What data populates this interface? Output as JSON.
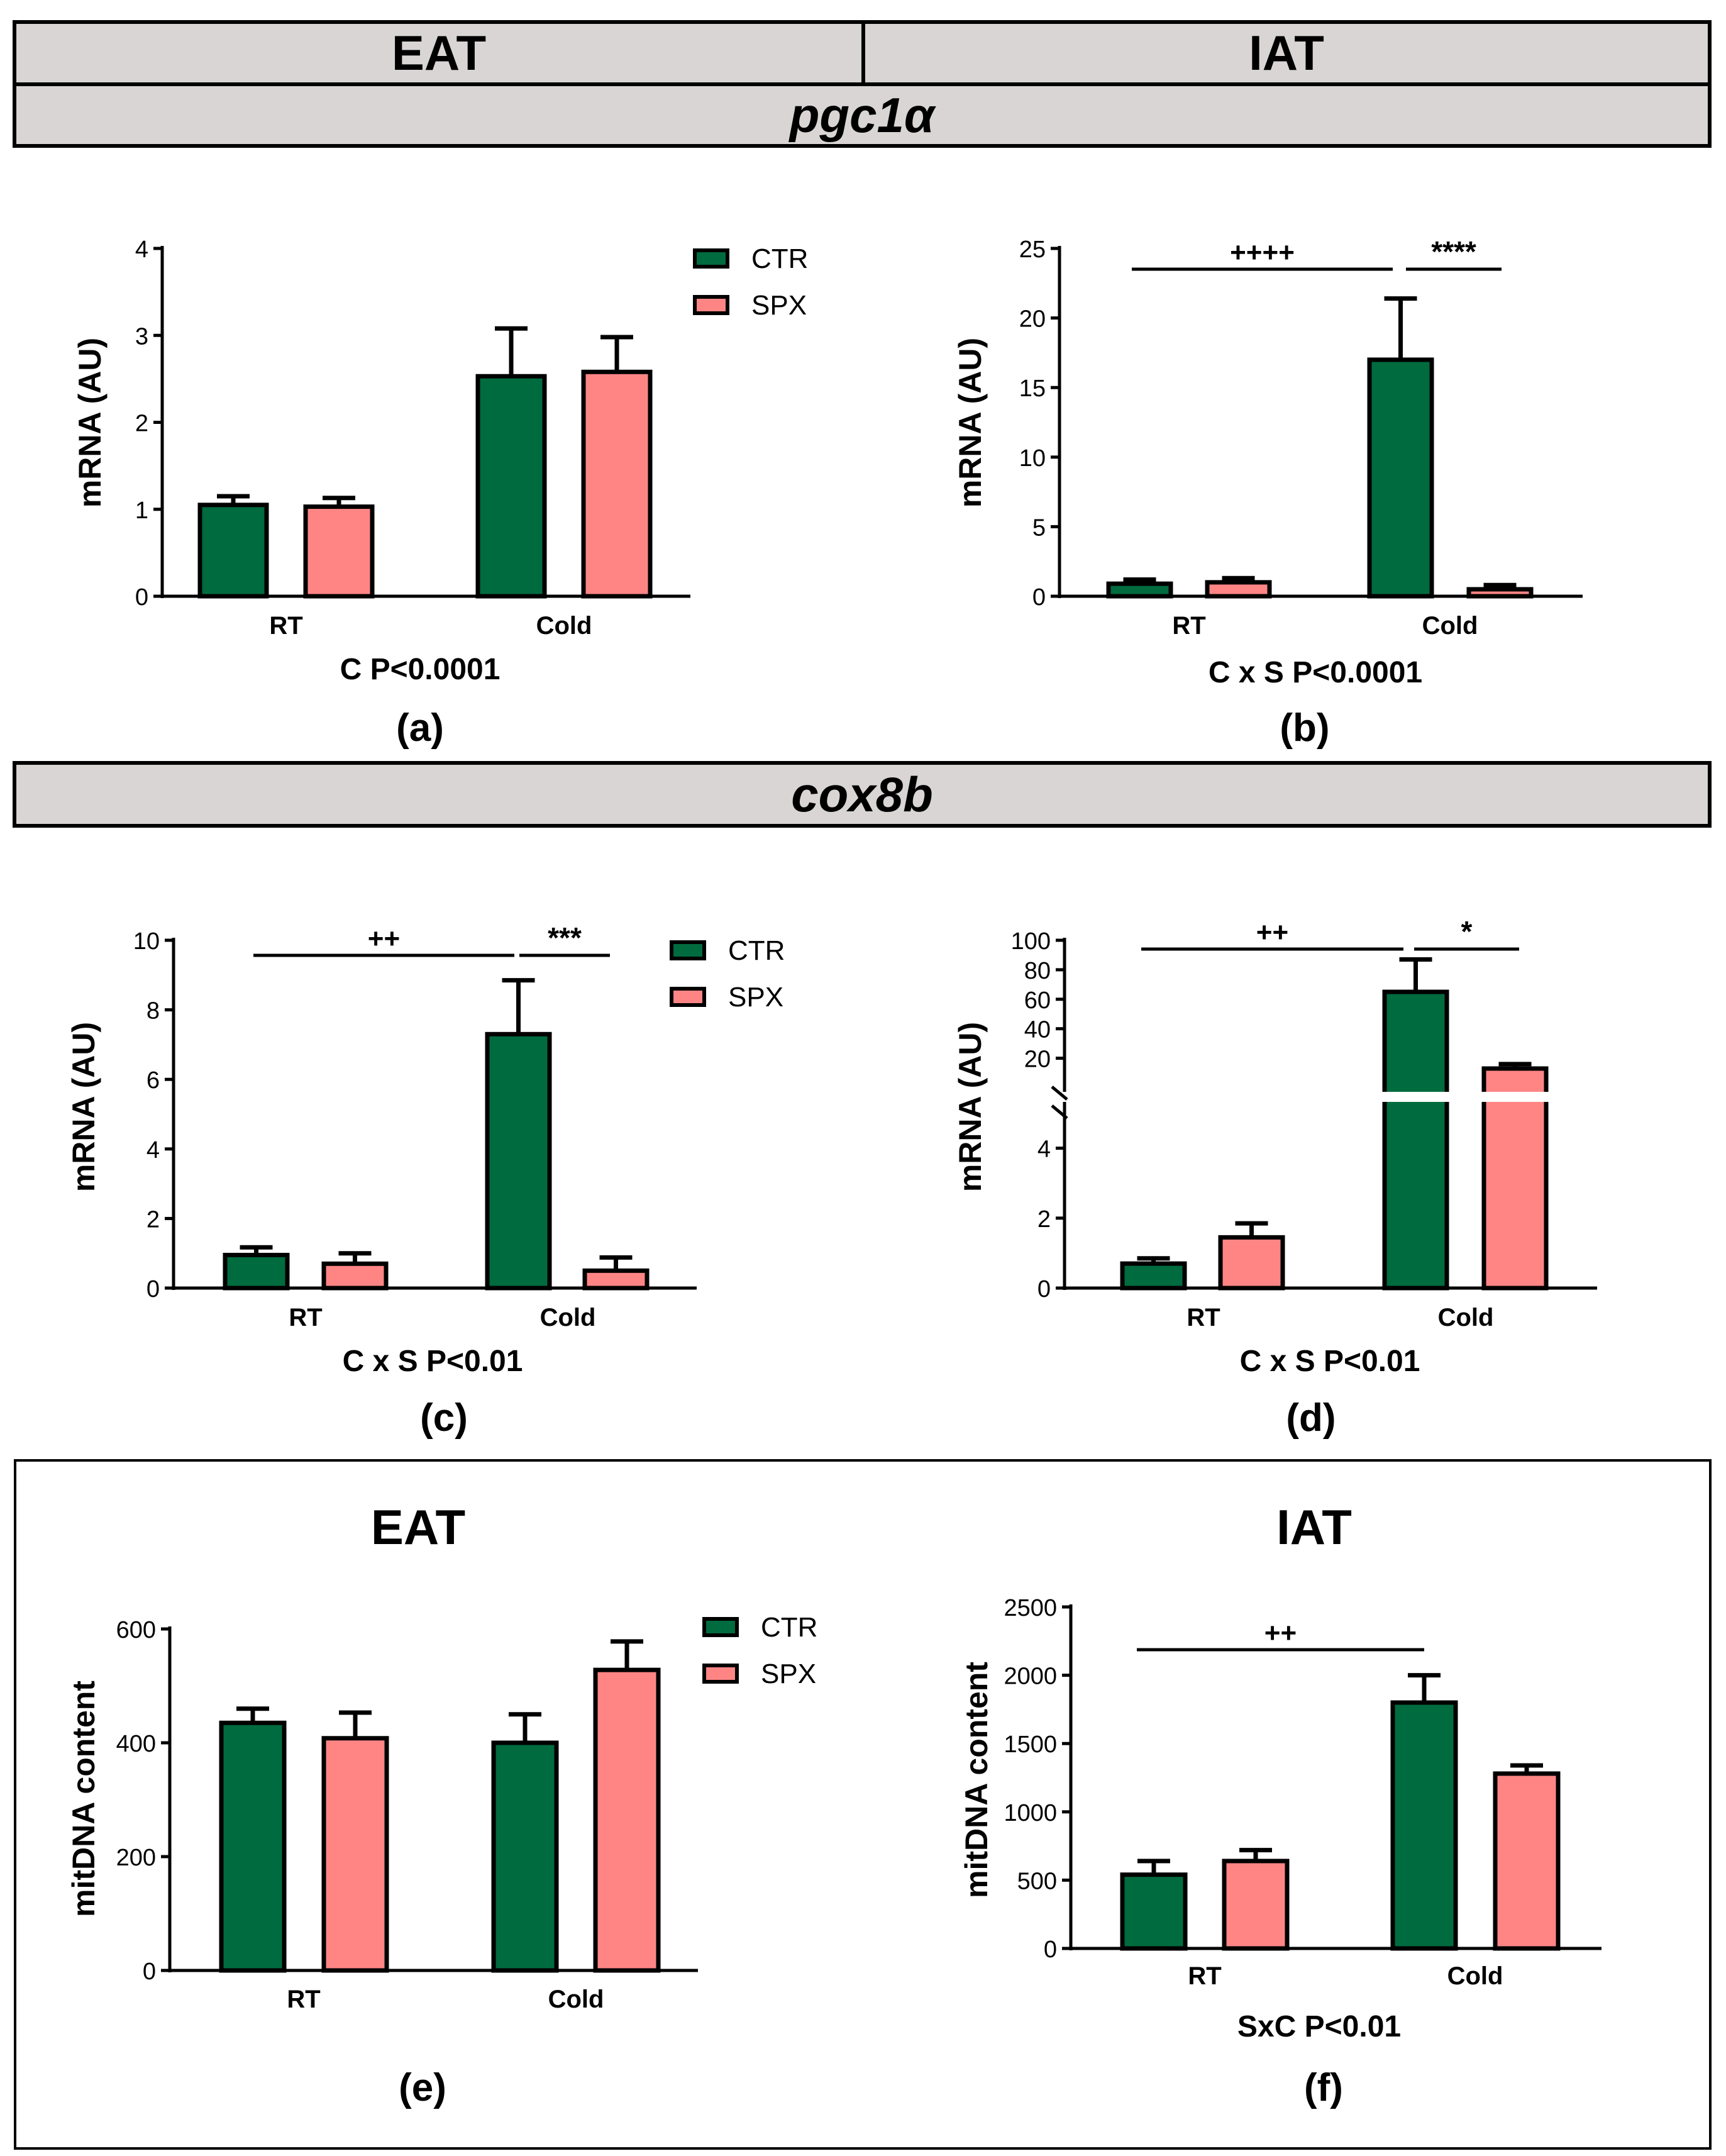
{
  "headers": {
    "left": "EAT",
    "right": "IAT",
    "gene1": "pgc1α",
    "gene2": "cox8b"
  },
  "colors": {
    "ctr": "#006b3f",
    "spx": "#ff8585",
    "header_bg": "#d9d5d5"
  },
  "legend": {
    "items": [
      {
        "name": "CTR",
        "color": "#006b3f"
      },
      {
        "name": "SPX",
        "color": "#ff8585"
      }
    ]
  },
  "chart_data": [
    {
      "id": "a",
      "type": "bar",
      "panel_label": "(a)",
      "ylabel": "mRNA (AU)",
      "ylim": [
        0,
        4
      ],
      "yticks": [
        "0",
        "1",
        "2",
        "3",
        "4"
      ],
      "categories": [
        "RT",
        "Cold"
      ],
      "series": [
        {
          "name": "CTR",
          "values": [
            1.05,
            2.53
          ],
          "errors": [
            0.1,
            0.55
          ]
        },
        {
          "name": "SPX",
          "values": [
            1.03,
            2.58
          ],
          "errors": [
            0.1,
            0.4
          ]
        }
      ],
      "stats_text": "C P<0.0001",
      "annotations": []
    },
    {
      "id": "b",
      "type": "bar",
      "panel_label": "(b)",
      "ylabel": "mRNA (AU)",
      "ylim": [
        0,
        25
      ],
      "yticks": [
        "0",
        "5",
        "10",
        "15",
        "20",
        "25"
      ],
      "categories": [
        "RT",
        "Cold"
      ],
      "series": [
        {
          "name": "CTR",
          "values": [
            0.9,
            17.0
          ],
          "errors": [
            0.3,
            4.4
          ]
        },
        {
          "name": "SPX",
          "values": [
            1.0,
            0.5
          ],
          "errors": [
            0.3,
            0.3
          ]
        }
      ],
      "stats_text": "C x S P<0.0001",
      "annotations": [
        {
          "text": "++++",
          "from": "RT",
          "to": "Cold"
        },
        {
          "text": "****",
          "from": "Cold",
          "to": "Cold"
        }
      ]
    },
    {
      "id": "c",
      "type": "bar",
      "panel_label": "(c)",
      "ylabel": "mRNA (AU)",
      "ylim": [
        0,
        10
      ],
      "yticks": [
        "0",
        "2",
        "4",
        "6",
        "8",
        "10"
      ],
      "categories": [
        "RT",
        "Cold"
      ],
      "series": [
        {
          "name": "CTR",
          "values": [
            0.95,
            7.3
          ],
          "errors": [
            0.22,
            1.55
          ]
        },
        {
          "name": "SPX",
          "values": [
            0.7,
            0.5
          ],
          "errors": [
            0.3,
            0.38
          ]
        }
      ],
      "stats_text": "C x S P<0.01",
      "annotations": [
        {
          "text": "++",
          "from": "RT",
          "to": "Cold"
        },
        {
          "text": "***",
          "from": "Cold",
          "to": "Cold"
        }
      ]
    },
    {
      "id": "d",
      "type": "bar",
      "panel_label": "(d)",
      "ylabel": "mRNA (AU)",
      "ylim": [
        0,
        100
      ],
      "yticks": [
        "0",
        "2",
        "4",
        "20",
        "40",
        "60",
        "80",
        "100"
      ],
      "axis_break": {
        "lower": [
          0,
          5
        ],
        "upper": [
          10,
          100
        ]
      },
      "categories": [
        "RT",
        "Cold"
      ],
      "series": [
        {
          "name": "CTR",
          "values": [
            0.7,
            65
          ],
          "errors": [
            0.15,
            22
          ]
        },
        {
          "name": "SPX",
          "values": [
            1.45,
            13
          ],
          "errors": [
            0.4,
            3
          ]
        }
      ],
      "stats_text": "C x S P<0.01",
      "annotations": [
        {
          "text": "++",
          "from": "RT",
          "to": "Cold"
        },
        {
          "text": "*",
          "from": "Cold",
          "to": "Cold"
        }
      ]
    },
    {
      "id": "e",
      "type": "bar",
      "panel_label": "(e)",
      "title": "EAT",
      "ylabel": "mitDNA content",
      "ylim": [
        0,
        600
      ],
      "yticks": [
        "0",
        "200",
        "400",
        "600"
      ],
      "categories": [
        "RT",
        "Cold"
      ],
      "series": [
        {
          "name": "CTR",
          "values": [
            435,
            400
          ],
          "errors": [
            25,
            50
          ]
        },
        {
          "name": "SPX",
          "values": [
            408,
            528
          ],
          "errors": [
            45,
            50
          ]
        }
      ],
      "stats_text": "",
      "annotations": []
    },
    {
      "id": "f",
      "type": "bar",
      "panel_label": "(f)",
      "title": "IAT",
      "ylabel": "mitDNA content",
      "ylim": [
        0,
        2500
      ],
      "yticks": [
        "0",
        "500",
        "1000",
        "1500",
        "2000",
        "2500"
      ],
      "categories": [
        "RT",
        "Cold"
      ],
      "series": [
        {
          "name": "CTR",
          "values": [
            540,
            1800
          ],
          "errors": [
            100,
            200
          ]
        },
        {
          "name": "SPX",
          "values": [
            640,
            1280
          ],
          "errors": [
            80,
            60
          ]
        }
      ],
      "stats_text": "SxC P<0.01",
      "annotations": [
        {
          "text": "++",
          "from": "RT",
          "to": "Cold"
        }
      ]
    }
  ]
}
